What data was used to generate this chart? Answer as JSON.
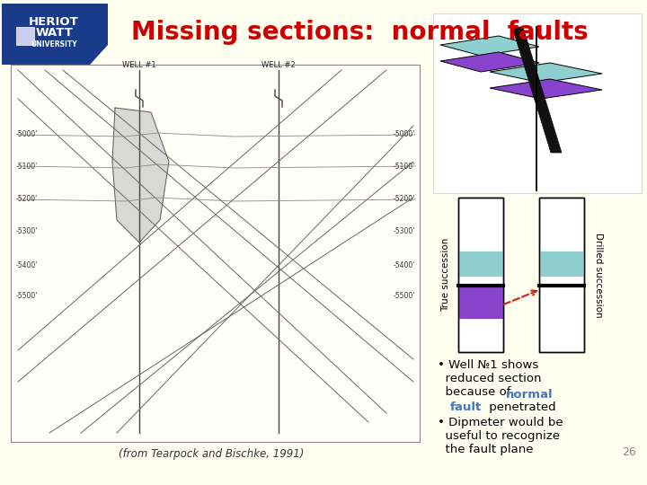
{
  "title": "Missing sections:  normal  faults",
  "title_color": "#cc0000",
  "title_fontsize": 20,
  "bg_color": "#fffff0",
  "heriot_watt_blue": "#1a3a8a",
  "citation": "(from Tearpock and Bischke, 1991)",
  "page_num": "26",
  "true_succession_label": "True succession",
  "drilled_succession_label": "Drilled succession",
  "cyan_color": "#8ecfcf",
  "purple_color": "#8844cc",
  "fault_red": "#cc2222",
  "black": "#000000",
  "white": "#ffffff",
  "left_panel_bg": "#fffff8",
  "diagram_bg": "#ffffff",
  "slide_bg_top": "#fffff0",
  "depth_labels_left": [
    "-5000'",
    "-5100'",
    "-5200'",
    "-5300'",
    "-5400'",
    "-5500'"
  ],
  "depth_y_left": [
    390,
    355,
    318,
    282,
    245,
    210
  ],
  "depth_labels_right": [
    "-5000'",
    "-5100'",
    "-5200'",
    "-5300'",
    "-5400'",
    "-5500'"
  ],
  "depth_y_right": [
    390,
    355,
    318,
    282,
    245,
    210
  ],
  "text_blue": "#4477bb"
}
